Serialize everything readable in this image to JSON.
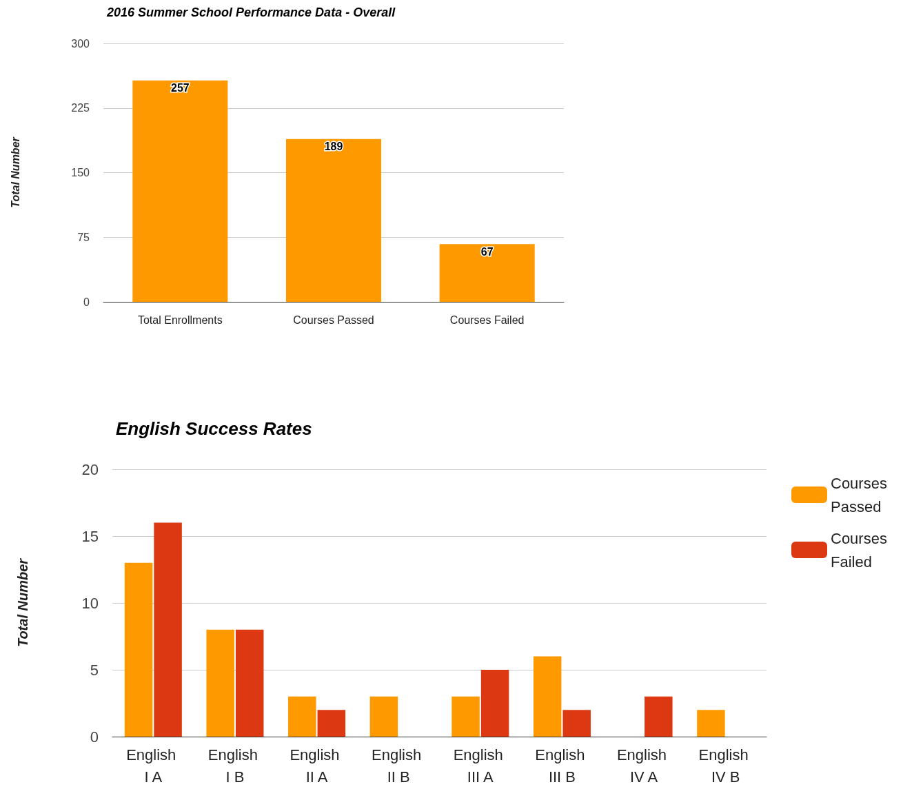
{
  "chart_data": [
    {
      "type": "bar",
      "title": "2016 Summer School Performance Data - Overall",
      "ylabel": "Total Number",
      "categories": [
        "Total Enrollments",
        "Courses Passed",
        "Courses Failed"
      ],
      "values": [
        257,
        189,
        67
      ],
      "color": "#ff9900",
      "ylim": [
        0,
        300
      ],
      "yticks": [
        0,
        75,
        150,
        225,
        300
      ],
      "grid": "y",
      "data_labels": true
    },
    {
      "type": "bar",
      "title": "English Success Rates",
      "ylabel": "Total Number",
      "categories": [
        "English I A",
        "English I B",
        "English II A",
        "English II B",
        "English III A",
        "English III B",
        "English IV A",
        "English IV B"
      ],
      "series": [
        {
          "name": "Courses Passed",
          "color": "#ff9900",
          "values": [
            13,
            8,
            3,
            3,
            3,
            6,
            0,
            2
          ]
        },
        {
          "name": "Courses Failed",
          "color": "#dc3912",
          "values": [
            16,
            8,
            2,
            0,
            5,
            2,
            3,
            0
          ]
        }
      ],
      "ylim": [
        0,
        20
      ],
      "yticks": [
        0,
        5,
        10,
        15,
        20
      ],
      "grid": "y",
      "legend": "right"
    }
  ]
}
